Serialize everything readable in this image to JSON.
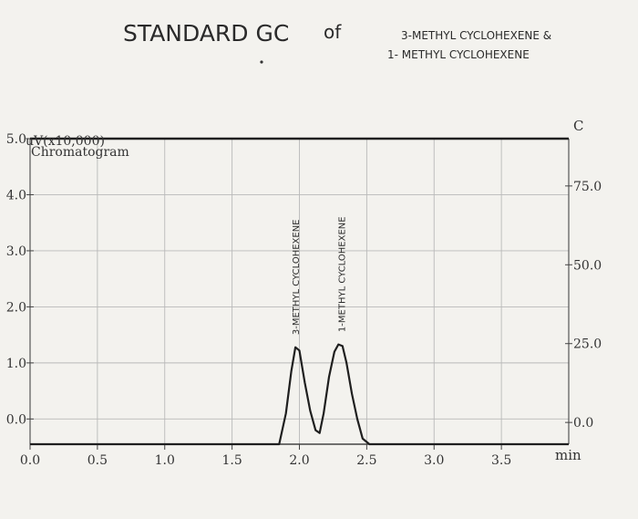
{
  "handwriting": {
    "title": "STANDARD GC",
    "of": "of",
    "compounds_line1": "3-METHYL CYCLOHEXENE &",
    "compounds_line2": "1- METHYL CYCLOHEXENE"
  },
  "chart_data": {
    "type": "line",
    "title": "Chromatogram",
    "y_axis_label": "uV(x10,000)",
    "x_axis_unit": "min",
    "right_axis_label": "C",
    "xlim": [
      0,
      4.0
    ],
    "ylim": [
      -0.45,
      5.0
    ],
    "right_ylim": [
      -6.9,
      90.0
    ],
    "x_ticks": [
      "0.0",
      "0.5",
      "1.0",
      "1.5",
      "2.0",
      "2.5",
      "3.0",
      "3.5"
    ],
    "x_tick_values": [
      0.0,
      0.5,
      1.0,
      1.5,
      2.0,
      2.5,
      3.0,
      3.5
    ],
    "y_ticks": [
      "0.0",
      "1.0",
      "2.0",
      "3.0",
      "4.0",
      "5.0"
    ],
    "y_tick_values": [
      0.0,
      1.0,
      2.0,
      3.0,
      4.0,
      5.0
    ],
    "right_ticks": [
      "0.0",
      "25.0",
      "50.0",
      "75.0"
    ],
    "right_tick_values": [
      0.0,
      25.0,
      50.0,
      75.0
    ],
    "grid": true,
    "series": [
      {
        "x": [
          0.0,
          1.5,
          1.85,
          1.9,
          1.94,
          1.97,
          2.0,
          2.04,
          2.08,
          2.12,
          2.15,
          2.18,
          2.22,
          2.26,
          2.29,
          2.32,
          2.35,
          2.39,
          2.43,
          2.47,
          2.52,
          3.0,
          4.0
        ],
        "y": [
          -0.45,
          -0.45,
          -0.45,
          0.1,
          0.85,
          1.28,
          1.22,
          0.65,
          0.15,
          -0.2,
          -0.25,
          0.1,
          0.75,
          1.2,
          1.33,
          1.3,
          1.0,
          0.45,
          0.0,
          -0.35,
          -0.45,
          -0.45,
          -0.45
        ]
      },
      {
        "x": [
          0.0,
          4.0
        ],
        "y": [
          5.0,
          5.0
        ]
      }
    ],
    "annotations": [
      {
        "text": "3-METHYL CYCLOHEXENE",
        "x": 1.97,
        "y": 1.5
      },
      {
        "text": "1-METHYL CYCLOHEXENE",
        "x": 2.31,
        "y": 1.55
      }
    ]
  }
}
